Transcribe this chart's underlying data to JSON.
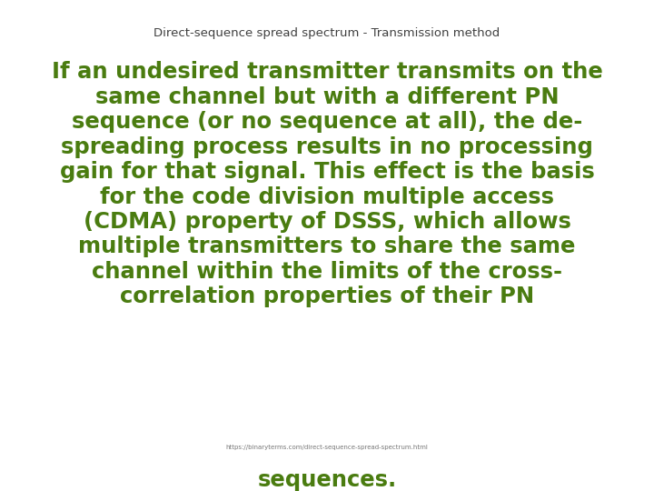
{
  "title": "Direct-sequence spread spectrum - Transmission method",
  "title_color": "#404040",
  "title_fontsize": 9.5,
  "body_lines": [
    "If an undesired transmitter transmits on the",
    "same channel but with a different PN",
    "sequence (or no sequence at all), the de-",
    "spreading process results in no processing",
    "gain for that signal. This effect is the basis",
    "for the code division multiple access",
    "(CDMA) property of DSSS, which allows",
    "multiple transmitters to share the same",
    "channel within the limits of the cross-",
    "correlation properties of their PN"
  ],
  "sequences_line": "sequences.",
  "body_color": "#4a7c10",
  "body_fontsize": 17.5,
  "footer_text": "https://binaryterms.com/direct-sequence-spread-spectrum.html",
  "footer_color": "#777777",
  "footer_fontsize": 5.0,
  "bg_color": "#ffffff",
  "fig_width": 7.2,
  "fig_height": 5.4,
  "dpi": 100
}
